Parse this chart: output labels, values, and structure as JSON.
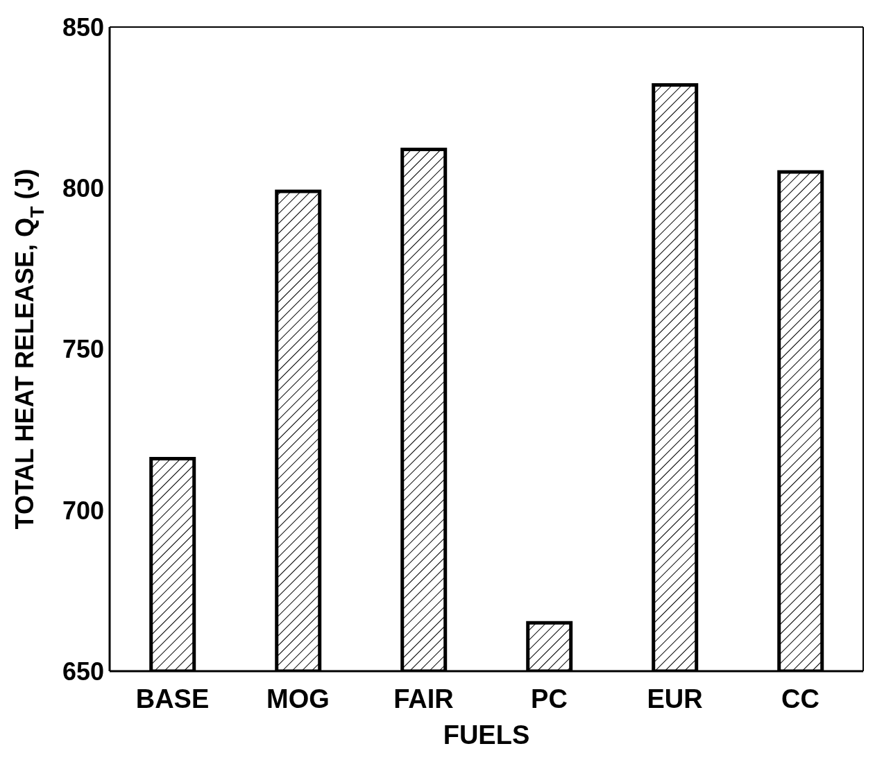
{
  "chart_data": {
    "type": "bar",
    "xlabel": "FUELS",
    "ylabel": "TOTAL HEAT RELEASE, Q$_{T}$ (J)",
    "categories": [
      "BASE",
      "MOG",
      "FAIR",
      "PC",
      "EUR",
      "CC"
    ],
    "values": [
      716,
      799,
      812,
      665,
      832,
      805
    ],
    "color": "#000000",
    "ylim": [
      650,
      850
    ],
    "yticks": [
      650,
      700,
      750,
      800,
      850
    ],
    "grid": false,
    "legend": false
  }
}
